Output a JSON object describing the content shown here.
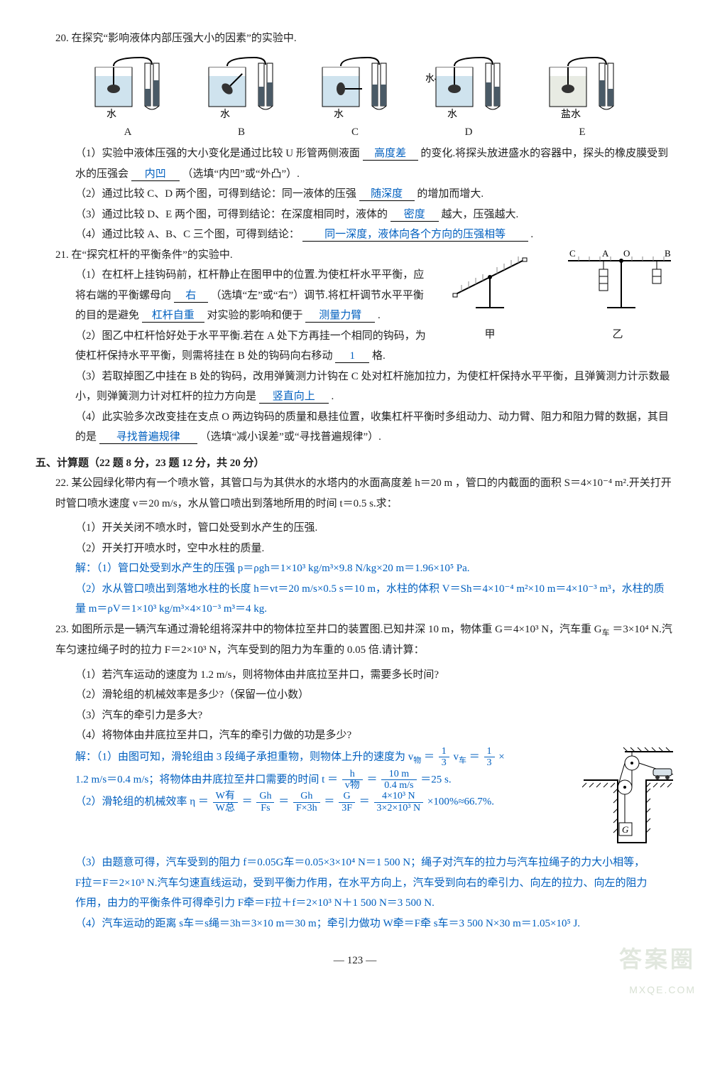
{
  "q20": {
    "num": "20.",
    "title": "在探究“影响液体内部压强大小的因素”的实验中.",
    "beakers": {
      "labels": [
        "A",
        "B",
        "C",
        "D",
        "E"
      ],
      "liquids": [
        "水",
        "水",
        "水",
        "水",
        "盐水"
      ],
      "arrow_label": "水",
      "body_color": "#cfe3ee",
      "probe_color": "#000",
      "salt_color": "#e8ebe3",
      "tube_color": "#4a5a66"
    },
    "p1": {
      "pre": "（1）实验中液体压强的大小变化是通过比较 U 形管两侧液面",
      "ans1": "高度差",
      "mid": "的变化.将探头放进盛水的容器中，探头的橡皮膜受到水的压强会",
      "ans2": "内凹",
      "post": "（选填“内凹”或“外凸”）."
    },
    "p2": {
      "pre": "（2）通过比较 C、D 两个图，可得到结论：同一液体的压强",
      "ans": "随深度",
      "post": "的增加而增大."
    },
    "p3": {
      "pre": "（3）通过比较 D、E 两个图，可得到结论：在深度相同时，液体的",
      "ans": "密度",
      "post": "越大，压强越大."
    },
    "p4": {
      "pre": "（4）通过比较 A、B、C 三个图，可得到结论：",
      "ans": "同一深度，液体向各个方向的压强相等",
      "post": "."
    }
  },
  "q21": {
    "num": "21.",
    "title": "在“探究杠杆的平衡条件”的实验中.",
    "fig_labels": [
      "甲",
      "乙"
    ],
    "fig_letters": [
      "C",
      "A",
      "B",
      "O"
    ],
    "p1": {
      "l1_pre": "（1）在杠杆上挂钩码前，杠杆静止在图甲中的位置.为使杠杆水平平衡，应将右端的平衡螺母向",
      "ans1": "右",
      "l1_post": "（选填“左”或“右”）调节.将杠杆调节水平平衡的目的是避免",
      "ans2": "杠杆自重",
      "l2_post": "对实验的影响和便于",
      "ans3": "测量力臂",
      "l3_post": "."
    },
    "p2": {
      "pre": "（2）图乙中杠杆恰好处于水平平衡.若在 A 处下方再挂一个相同的钩码，为使杠杆保持水平平衡，则需将挂在 B 处的钩码向右移动",
      "ans": "1",
      "post": "格."
    },
    "p3": {
      "pre": "（3）若取掉图乙中挂在 B 处的钩码，改用弹簧测力计钩在 C 处对杠杆施加拉力，为使杠杆保持水平平衡，且弹簧测力计示数最小，则弹簧测力计对杠杆的拉力方向是",
      "ans": "竖直向上",
      "post": "."
    },
    "p4": {
      "pre": "（4）此实验多次改变挂在支点 O 两边钩码的质量和悬挂位置，收集杠杆平衡时多组动力、动力臂、阻力和阻力臂的数据，其目的是",
      "ans": "寻找普遍规律",
      "post": "（选填“减小误差”或“寻找普遍规律”）."
    }
  },
  "section5": "五、计算题（22 题 8 分，23 题 12 分，共 20 分）",
  "q22": {
    "num": "22.",
    "title": "某公园绿化带内有一个喷水管，其管口与为其供水的水塔内的水面高度差 h＝20 m ，管口的内截面的面积 S＝4×10⁻⁴ m².开关打开时管口喷水速度 v＝20 m/s，水从管口喷出到落地所用的时间 t＝0.5 s.求：",
    "p1": "（1）开关关闭不喷水时，管口处受到水产生的压强.",
    "p2": "（2）开关打开喷水时，空中水柱的质量.",
    "sol1": "解：（1）管口处受到水产生的压强 p＝ρgh＝1×10³ kg/m³×9.8 N/kg×20 m＝1.96×10⁵ Pa.",
    "sol2": "（2）水从管口喷出到落地水柱的长度 h＝vt＝20 m/s×0.5 s＝10 m，水柱的体积 V＝Sh＝4×10⁻⁴ m²×10 m＝4×10⁻³ m³，水柱的质量 m＝ρV＝1×10³ kg/m³×4×10⁻³ m³＝4 kg."
  },
  "q23": {
    "num": "23.",
    "title_a": "如图所示是一辆汽车通过滑轮组将深井中的物体拉至井口的装置图.已知井深 10 m，物体重 G＝4×10³ N，汽车重 G",
    "title_b": "＝3×10⁴ N.汽车匀速拉绳子时的拉力 F＝2×10³ N，汽车受到的阻力为车重的 0.05 倍.请计算：",
    "p1": "（1）若汽车运动的速度为 1.2 m/s，则将物体由井底拉至井口，需要多长时间?",
    "p2": "（2）滑轮组的机械效率是多少?（保留一位小数）",
    "p3": "（3）汽车的牵引力是多大?",
    "p4": "（4）将物体由井底拉至井口，汽车的牵引力做的功是多少?",
    "sol1_pre": "解：（1）由图可知，滑轮组由 3 段绳子承担重物，则物体上升的速度为 v",
    "sol1_mid1": " ＝ ",
    "sol1_frac1": {
      "num": "1",
      "den": "3"
    },
    "sol1_mid2": " v",
    "sol1_mid3": " ＝ ",
    "sol1_frac2": {
      "num": "1",
      "den": "3"
    },
    "sol1_mid4": " ×",
    "sol1_line2_pre": "1.2 m/s＝0.4 m/s；将物体由井底拉至井口需要的时间 t ＝ ",
    "sol1_frac3": {
      "num": "h",
      "den": "v物"
    },
    "sol1_line2_mid": " ＝ ",
    "sol1_frac4": {
      "num": "10 m",
      "den": "0.4 m/s"
    },
    "sol1_line2_post": " ＝25 s.",
    "sol2_pre": "（2）滑轮组的机械效率 η ＝ ",
    "sol2_f1": {
      "num": "W有",
      "den": "W总"
    },
    "sol2_eq": " ＝ ",
    "sol2_f2": {
      "num": "Gh",
      "den": "Fs"
    },
    "sol2_f3": {
      "num": "Gh",
      "den": "F×3h"
    },
    "sol2_f4": {
      "num": "G",
      "den": "3F"
    },
    "sol2_f5": {
      "num": "4×10³ N",
      "den": "3×2×10³ N"
    },
    "sol2_post": " ×100%≈66.7%.",
    "sol3_l1": "（3）由题意可得，汽车受到的阻力 f＝0.05G车＝0.05×3×10⁴ N＝1 500 N；绳子对汽车的拉力与汽车拉绳子的力大小相等，",
    "sol3_l2": "F拉＝F＝2×10³ N.汽车匀速直线运动，受到平衡力作用，在水平方向上，汽车受到向右的牵引力、向左的拉力、向左的阻力",
    "sol3_l3": "作用，由力的平衡条件可得牵引力 F牵＝F拉＋f＝2×10³ N＋1 500 N＝3 500 N.",
    "sol4": "（4）汽车运动的距离 s车＝s绳＝3h＝3×10 m＝30 m；牵引力做功 W牵＝F牵 s车＝3 500 N×30 m＝1.05×10⁵ J."
  },
  "page": "123",
  "wm": {
    "line1": "答案圈",
    "line2": "MXQE.COM"
  }
}
